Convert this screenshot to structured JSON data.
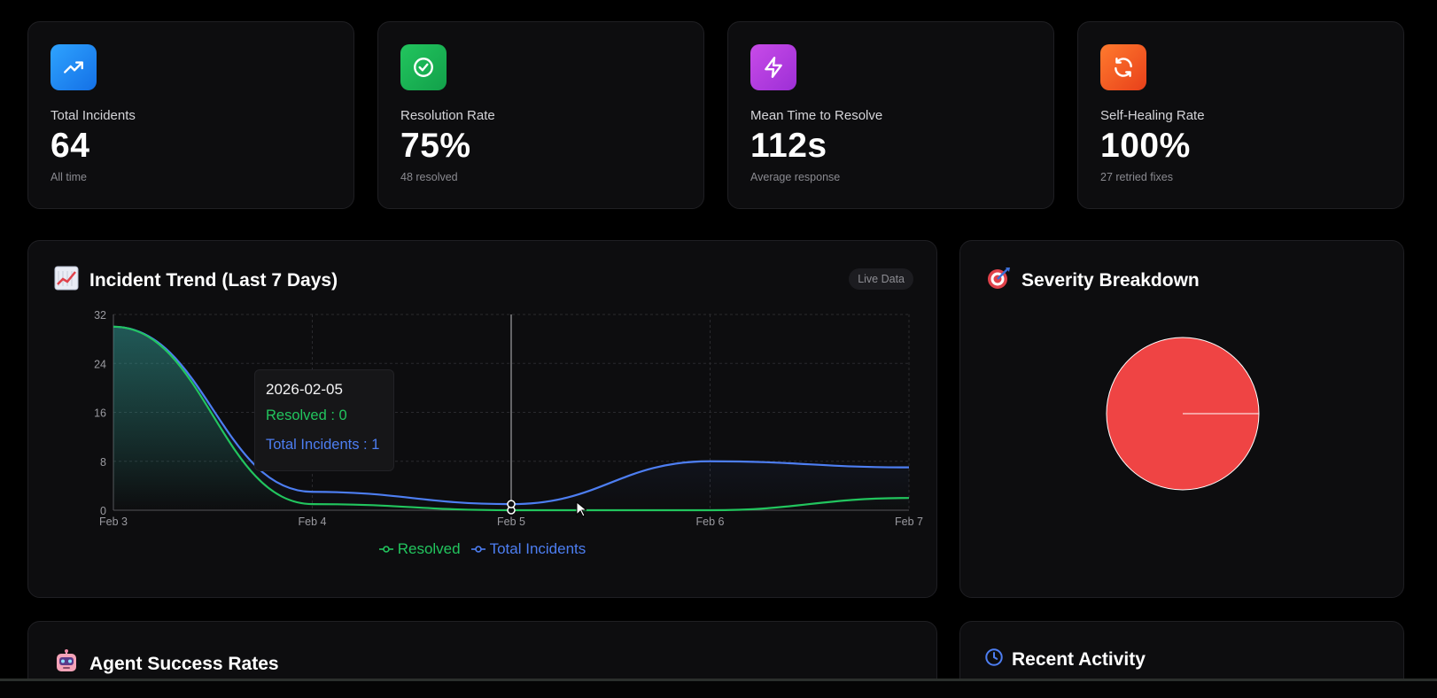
{
  "stats": [
    {
      "label": "Total Incidents",
      "value": "64",
      "sub": "All time",
      "icon": "trending-up-icon",
      "color": "#1e90f5"
    },
    {
      "label": "Resolution Rate",
      "value": "75%",
      "sub": "48 resolved",
      "icon": "check-circle-icon",
      "color": "#16b455"
    },
    {
      "label": "Mean Time to Resolve",
      "value": "112s",
      "sub": "Average response",
      "icon": "lightning-icon",
      "color": "#b53fe0"
    },
    {
      "label": "Self-Healing Rate",
      "value": "100%",
      "sub": "27 retried fixes",
      "icon": "refresh-icon",
      "color": "#f25a1f"
    }
  ],
  "trend": {
    "title": "Incident Trend (Last 7 Days)",
    "badge": "Live Data",
    "tooltip": {
      "date": "2026-02-05",
      "resolved": "Resolved : 0",
      "total": "Total Incidents : 1"
    }
  },
  "severity": {
    "title": "Severity Breakdown",
    "slice_color": "#ef4444"
  },
  "agents": {
    "title": "Agent Success Rates"
  },
  "activity": {
    "title": "Recent Activity"
  },
  "chart_data": {
    "type": "line",
    "categories": [
      "Feb 3",
      "Feb 4",
      "Feb 5",
      "Feb 6",
      "Feb 7"
    ],
    "ylim": [
      0,
      32
    ],
    "yticks": [
      "0",
      "8",
      "16",
      "24",
      "32"
    ],
    "grid": true,
    "legend_position": "bottom",
    "series": [
      {
        "name": "Resolved",
        "color": "#22c55e",
        "values": [
          30,
          1,
          0,
          0,
          2
        ]
      },
      {
        "name": "Total Incidents",
        "color": "#4d7ef2",
        "values": [
          30,
          3,
          1,
          8,
          7
        ]
      }
    ]
  }
}
